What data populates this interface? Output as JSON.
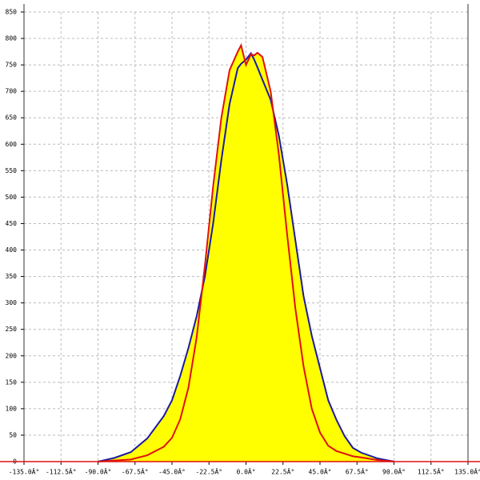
{
  "chart_data": {
    "type": "area-line",
    "x": [
      -90,
      -80,
      -70,
      -60,
      -50,
      -45,
      -40,
      -35,
      -30,
      -25,
      -20,
      -15,
      -10,
      -5,
      -3,
      0,
      3,
      5,
      7,
      10,
      15,
      20,
      25,
      30,
      35,
      40,
      45,
      50,
      55,
      60,
      65,
      70,
      80,
      90
    ],
    "series": [
      {
        "color": "#1a1aa0",
        "values": [
          0,
          7,
          18,
          44,
          86,
          116,
          162,
          215,
          275,
          350,
          450,
          570,
          676,
          744,
          752,
          760,
          772,
          760,
          745,
          722,
          684,
          616,
          525,
          419,
          313,
          238,
          177,
          116,
          79,
          48,
          26,
          17,
          6,
          0
        ]
      },
      {
        "color": "#e01010",
        "values": [
          0,
          2,
          4,
          12,
          28,
          45,
          80,
          140,
          235,
          370,
          520,
          650,
          740,
          775,
          787,
          750,
          770,
          768,
          773,
          765,
          700,
          580,
          430,
          290,
          180,
          100,
          55,
          30,
          20,
          15,
          10,
          8,
          3,
          0
        ]
      }
    ],
    "fill_color": "#ffff00",
    "xlim": [
      -135,
      135
    ],
    "xticks": [
      {
        "value": -135,
        "label": "-135.0Â°"
      },
      {
        "value": -112.5,
        "label": "-112.5Â°"
      },
      {
        "value": -90,
        "label": "-90.0Â°"
      },
      {
        "value": -67.5,
        "label": "-67.5Â°"
      },
      {
        "value": -45,
        "label": "-45.0Â°"
      },
      {
        "value": -22.5,
        "label": "-22.5Â°"
      },
      {
        "value": 0,
        "label": "0.0Â°"
      },
      {
        "value": 22.5,
        "label": "22.5Â°"
      },
      {
        "value": 45,
        "label": "45.0Â°"
      },
      {
        "value": 67.5,
        "label": "67.5Â°"
      },
      {
        "value": 90,
        "label": "90.0Â°"
      },
      {
        "value": 112.5,
        "label": "112.5Â°"
      },
      {
        "value": 135,
        "label": "135.0Â°"
      }
    ],
    "ylim": [
      0,
      850
    ],
    "yticks": [
      0,
      50,
      100,
      150,
      200,
      250,
      300,
      350,
      400,
      450,
      500,
      550,
      600,
      650,
      700,
      750,
      800,
      850
    ],
    "grid": true
  }
}
